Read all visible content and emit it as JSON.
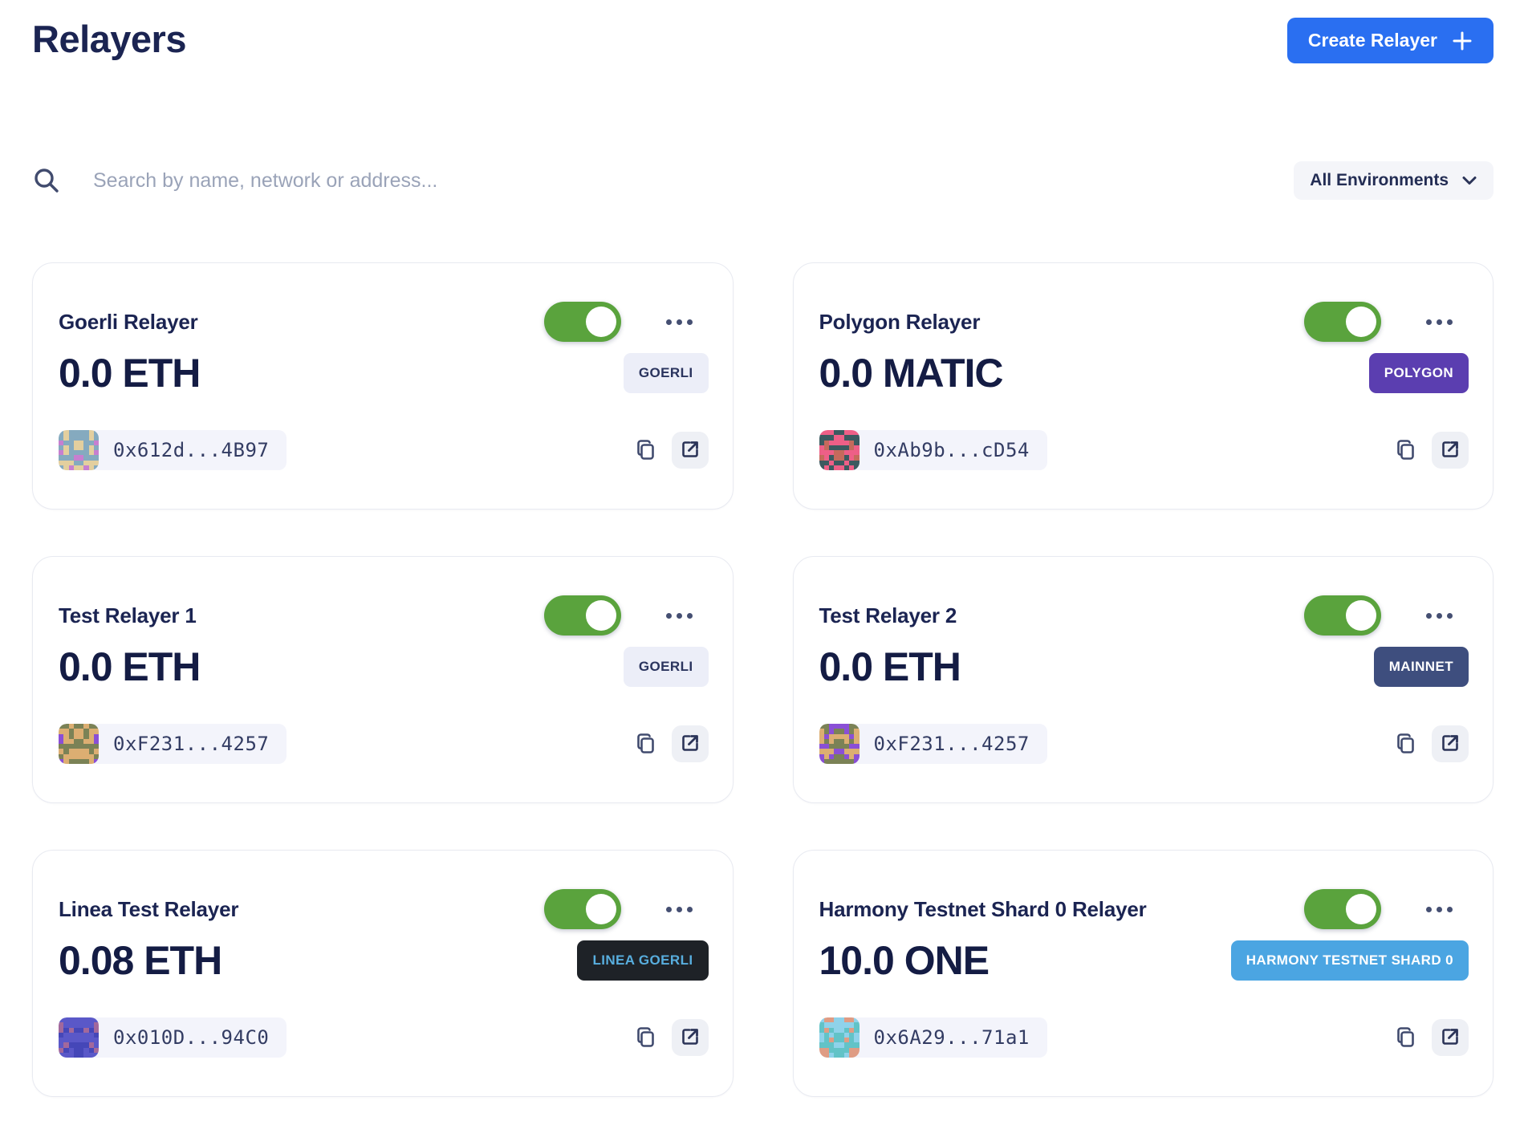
{
  "page": {
    "title": "Relayers"
  },
  "header": {
    "create_button_label": "Create Relayer",
    "create_button_color": "#2a6ff1"
  },
  "toolbar": {
    "search_placeholder": "Search by name, network or address...",
    "environment_filter_value": "All Environments"
  },
  "colors": {
    "heading_navy": "#1b2452",
    "toggle_on_green": "#5aa33d",
    "card_border": "#e8eaf1",
    "address_pill_bg": "#f3f4fb"
  },
  "icons": {
    "search": "search-icon",
    "plus": "plus-icon",
    "chevron_down": "chevron-down-icon",
    "ellipsis_menu": "ellipsis-menu-icon",
    "copy": "copy-icon",
    "external_link": "external-link-icon"
  },
  "cards": [
    {
      "name": "Goerli Relayer",
      "balance": "0.0 ETH",
      "network": "GOERLI",
      "badge_bg": "#eceef8",
      "badge_fg": "#2a345e",
      "address": "0x612d...4B97",
      "toggle_on": true,
      "identicon_colors": [
        "#85aabf",
        "#e3cf9e",
        "#c77fd0"
      ]
    },
    {
      "name": "Polygon Relayer",
      "balance": "0.0 MATIC",
      "network": "POLYGON",
      "badge_bg": "#5b3eb0",
      "badge_fg": "#ffffff",
      "address": "0xAb9b...cD54",
      "toggle_on": true,
      "identicon_colors": [
        "#3c5a60",
        "#ee5f87",
        "#c56a5c"
      ]
    },
    {
      "name": "Test Relayer 1",
      "balance": "0.0 ETH",
      "network": "GOERLI",
      "badge_bg": "#eceef8",
      "badge_fg": "#2a345e",
      "address": "0xF231...4257",
      "toggle_on": true,
      "identicon_colors": [
        "#7b8256",
        "#dcae72",
        "#8a4fd6"
      ]
    },
    {
      "name": "Test Relayer 2",
      "balance": "0.0 ETH",
      "network": "MAINNET",
      "badge_bg": "#3e4e7e",
      "badge_fg": "#ffffff",
      "address": "0xF231...4257",
      "toggle_on": true,
      "identicon_colors": [
        "#7b8256",
        "#dcae72",
        "#8a4fd6"
      ]
    },
    {
      "name": "Linea Test Relayer",
      "balance": "0.08 ETH",
      "network": "LINEA GOERLI",
      "badge_bg": "#1e2227",
      "badge_fg": "#58aede",
      "address": "0x010D...94C0",
      "toggle_on": true,
      "identicon_colors": [
        "#5a58c8",
        "#4547b8",
        "#a2689c"
      ]
    },
    {
      "name": "Harmony Testnet Shard 0 Relayer",
      "balance": "10.0 ONE",
      "network": "HARMONY TESTNET SHARD 0",
      "badge_bg": "#4ba5e2",
      "badge_fg": "#ffffff",
      "address": "0x6A29...71a1",
      "toggle_on": true,
      "identicon_colors": [
        "#62c3c7",
        "#8fd2ea",
        "#df9c84"
      ]
    }
  ]
}
